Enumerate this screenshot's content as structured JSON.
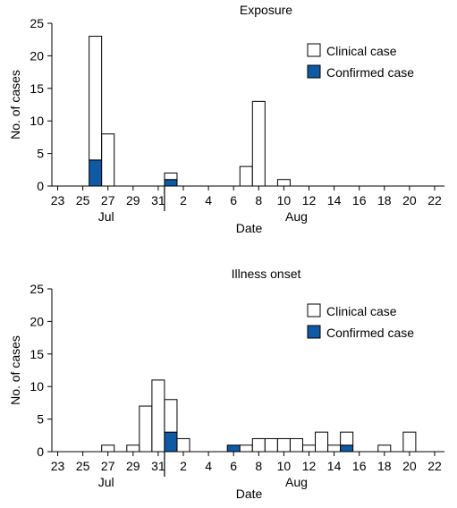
{
  "colors": {
    "confirmed": "#0f5aa5",
    "clinical": "#ffffff",
    "axis": "#000000"
  },
  "chart_data": [
    {
      "type": "bar",
      "stacked": true,
      "title": "Exposure",
      "xlabel": "Date",
      "ylabel": "No. of cases",
      "ylim": [
        0,
        25
      ],
      "yticks": [
        0,
        5,
        10,
        15,
        20,
        25
      ],
      "x": [
        "Jul 23",
        "Jul 24",
        "Jul 25",
        "Jul 26",
        "Jul 27",
        "Jul 28",
        "Jul 29",
        "Jul 30",
        "Jul 31",
        "Aug 1",
        "Aug 2",
        "Aug 3",
        "Aug 4",
        "Aug 5",
        "Aug 6",
        "Aug 7",
        "Aug 8",
        "Aug 9",
        "Aug 10",
        "Aug 11",
        "Aug 12",
        "Aug 13",
        "Aug 14",
        "Aug 15",
        "Aug 16",
        "Aug 17",
        "Aug 18",
        "Aug 19",
        "Aug 20",
        "Aug 21",
        "Aug 22"
      ],
      "xtick_labels": [
        "23",
        "25",
        "27",
        "29",
        "31",
        "2",
        "4",
        "6",
        "8",
        "10",
        "12",
        "14",
        "16",
        "18",
        "20",
        "22"
      ],
      "month_labels": [
        "Jul",
        "Aug"
      ],
      "series": [
        {
          "name": "Confirmed case",
          "values": [
            0,
            0,
            0,
            4,
            0,
            0,
            0,
            0,
            0,
            1,
            0,
            0,
            0,
            0,
            0,
            0,
            0,
            0,
            0,
            0,
            0,
            0,
            0,
            0,
            0,
            0,
            0,
            0,
            0,
            0,
            0
          ]
        },
        {
          "name": "Clinical case",
          "values": [
            0,
            0,
            0,
            19,
            8,
            0,
            0,
            0,
            0,
            1,
            0,
            0,
            0,
            0,
            0,
            3,
            13,
            0,
            1,
            0,
            0,
            0,
            0,
            0,
            0,
            0,
            0,
            0,
            0,
            0,
            0
          ]
        }
      ],
      "legend": [
        "Clinical case",
        "Confirmed case"
      ],
      "legend_position": "top-right",
      "grid": false
    },
    {
      "type": "bar",
      "stacked": true,
      "title": "Illness onset",
      "xlabel": "Date",
      "ylabel": "No. of cases",
      "ylim": [
        0,
        25
      ],
      "yticks": [
        0,
        5,
        10,
        15,
        20,
        25
      ],
      "x": [
        "Jul 23",
        "Jul 24",
        "Jul 25",
        "Jul 26",
        "Jul 27",
        "Jul 28",
        "Jul 29",
        "Jul 30",
        "Jul 31",
        "Aug 1",
        "Aug 2",
        "Aug 3",
        "Aug 4",
        "Aug 5",
        "Aug 6",
        "Aug 7",
        "Aug 8",
        "Aug 9",
        "Aug 10",
        "Aug 11",
        "Aug 12",
        "Aug 13",
        "Aug 14",
        "Aug 15",
        "Aug 16",
        "Aug 17",
        "Aug 18",
        "Aug 19",
        "Aug 20",
        "Aug 21",
        "Aug 22"
      ],
      "xtick_labels": [
        "23",
        "25",
        "27",
        "29",
        "31",
        "2",
        "4",
        "6",
        "8",
        "10",
        "12",
        "14",
        "16",
        "18",
        "20",
        "22"
      ],
      "month_labels": [
        "Jul",
        "Aug"
      ],
      "series": [
        {
          "name": "Confirmed case",
          "values": [
            0,
            0,
            0,
            0,
            0,
            0,
            0,
            0,
            0,
            3,
            0,
            0,
            0,
            0,
            1,
            0,
            0,
            0,
            0,
            0,
            0,
            0,
            0,
            1,
            0,
            0,
            0,
            0,
            0,
            0,
            0
          ]
        },
        {
          "name": "Clinical case",
          "values": [
            0,
            0,
            0,
            0,
            1,
            0,
            1,
            7,
            11,
            5,
            2,
            0,
            0,
            0,
            0,
            1,
            2,
            2,
            2,
            2,
            1,
            3,
            1,
            2,
            0,
            0,
            1,
            0,
            3,
            0,
            0
          ]
        }
      ],
      "legend": [
        "Clinical case",
        "Confirmed case"
      ],
      "legend_position": "top-right",
      "grid": false
    }
  ]
}
